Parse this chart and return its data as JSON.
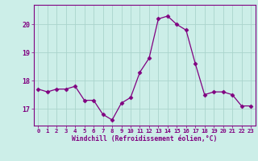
{
  "hours": [
    0,
    1,
    2,
    3,
    4,
    5,
    6,
    7,
    8,
    9,
    10,
    11,
    12,
    13,
    14,
    15,
    16,
    17,
    18,
    19,
    20,
    21,
    22,
    23
  ],
  "values": [
    17.7,
    17.6,
    17.7,
    17.7,
    17.8,
    17.3,
    17.3,
    16.8,
    16.6,
    17.2,
    17.4,
    18.3,
    18.8,
    20.2,
    20.3,
    20.0,
    19.8,
    18.6,
    17.5,
    17.6,
    17.6,
    17.5,
    17.1,
    17.1
  ],
  "line_color": "#800080",
  "marker": "D",
  "marker_size": 2.5,
  "bg_color": "#cceee8",
  "grid_color": "#aad4cc",
  "text_color": "#800080",
  "xlabel": "Windchill (Refroidissement éolien,°C)",
  "ylim": [
    16.4,
    20.7
  ],
  "yticks": [
    17,
    18,
    19,
    20
  ],
  "xtick_labels": [
    "0",
    "1",
    "2",
    "3",
    "4",
    "5",
    "6",
    "7",
    "8",
    "9",
    "10",
    "11",
    "12",
    "13",
    "14",
    "15",
    "16",
    "17",
    "18",
    "19",
    "20",
    "21",
    "22",
    "23"
  ]
}
